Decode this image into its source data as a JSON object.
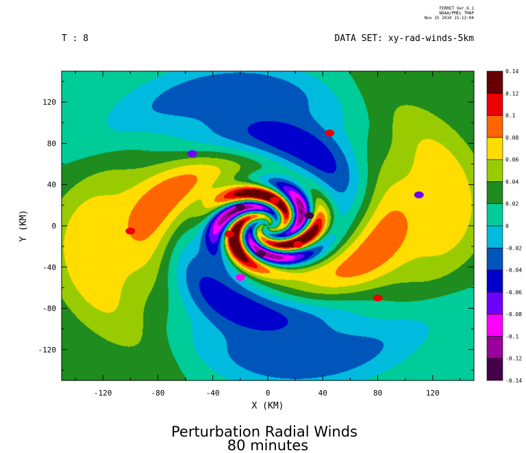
{
  "header": {
    "credit_lines": [
      "FERRET Ver.6.1",
      "NOAA/PMEL TMAP",
      "Nov 15 2010 15:12:04"
    ],
    "time_label": "T : 8",
    "dataset_label": "DATA SET: xy-rad-winds-5km"
  },
  "chart_data": {
    "type": "heatmap",
    "title": "Perturbation Radial Winds",
    "subtitle": "80 minutes",
    "xlabel": "X (KM)",
    "ylabel": "Y (KM)",
    "xlim": [
      -150,
      150
    ],
    "ylim": [
      -150,
      150
    ],
    "xticks": [
      -120,
      -80,
      -40,
      0,
      40,
      80,
      120
    ],
    "yticks": [
      -120,
      -80,
      -40,
      0,
      40,
      80,
      120
    ],
    "colorbar": {
      "levels": [
        -0.14,
        -0.12,
        -0.1,
        -0.08,
        -0.06,
        -0.04,
        -0.02,
        0,
        0.02,
        0.04,
        0.06,
        0.08,
        0.1,
        0.12,
        0.14
      ],
      "labels": [
        "-0.14",
        "-0.12",
        "-0.1",
        "-0.08",
        "-0.06",
        "-0.04",
        "-0.02",
        "0",
        "0.02",
        "0.04",
        "0.06",
        "0.08",
        "0.1",
        "0.12",
        "0.14"
      ],
      "colors": [
        "#44004a",
        "#9a0099",
        "#ff00ff",
        "#6e00ff",
        "#0000cc",
        "#0055bb",
        "#00bbdd",
        "#00cc99",
        "#1e8c1e",
        "#99cc00",
        "#ffdd00",
        "#ff6600",
        "#ee0000",
        "#660000"
      ]
    },
    "features": [
      {
        "x": -20,
        "y": 18,
        "value": -0.13
      },
      {
        "x": -5,
        "y": -27,
        "value": -0.13
      },
      {
        "x": 30,
        "y": 10,
        "value": -0.13
      },
      {
        "x": 5,
        "y": 25,
        "value": 0.11
      },
      {
        "x": -28,
        "y": -8,
        "value": 0.11
      },
      {
        "x": 22,
        "y": -18,
        "value": 0.11
      },
      {
        "x": -100,
        "y": -5,
        "value": 0.1
      },
      {
        "x": 45,
        "y": 90,
        "value": 0.1
      },
      {
        "x": 80,
        "y": -70,
        "value": 0.1
      },
      {
        "x": -55,
        "y": 70,
        "value": -0.07
      },
      {
        "x": 110,
        "y": 30,
        "value": -0.07
      },
      {
        "x": -20,
        "y": -50,
        "value": -0.09
      }
    ]
  }
}
